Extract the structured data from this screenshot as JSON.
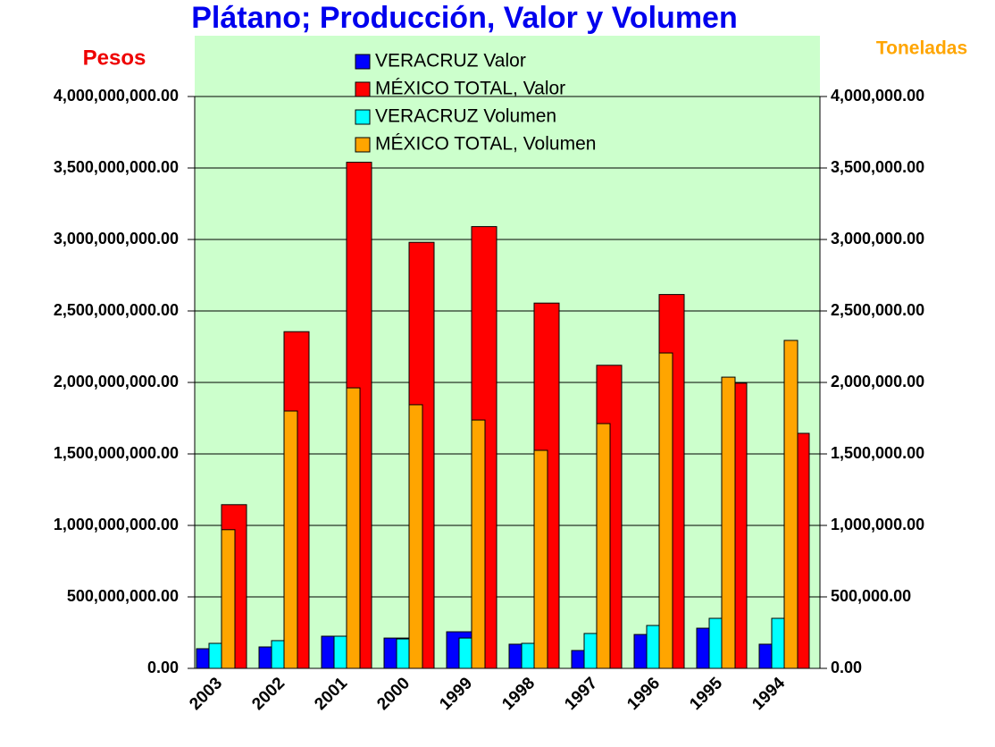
{
  "chart_data": {
    "type": "bar",
    "title": "Plátano; Producción, Valor y Volumen",
    "ylabel": "Pesos",
    "y2label": "Toneladas",
    "categories": [
      "2003",
      "2002",
      "2001",
      "2000",
      "1999",
      "1998",
      "1997",
      "1996",
      "1995",
      "1994"
    ],
    "series": [
      {
        "name": "VERACRUZ Valor",
        "color": "#0000ff",
        "values": [
          137500000,
          150000000,
          225000000,
          212000000,
          256000000,
          169000000,
          125000000,
          237000000,
          281000000,
          169000000
        ]
      },
      {
        "name": "MÉXICO TOTAL,  Valor",
        "color": "#ff0000",
        "values": [
          1145000000,
          2355000000,
          3540000000,
          2980000000,
          3090000000,
          2555000000,
          2120000000,
          2615000000,
          1995000000,
          1644000000
        ]
      },
      {
        "name": "VERACRUZ Volumen",
        "color": "#00ffff",
        "axis": "y2",
        "values": [
          175000,
          194000,
          225000,
          206000,
          212000,
          175000,
          244000,
          300000,
          350000,
          350000
        ]
      },
      {
        "name": "MÉXICO TOTAL, Volumen",
        "color": "#ffa500",
        "axis": "y2",
        "values": [
          970000,
          1800000,
          1962000,
          1844000,
          1737000,
          1525000,
          1712000,
          2206000,
          2037000,
          2294000
        ]
      }
    ],
    "ylim": [
      0,
      4000000000
    ],
    "yticks": [
      {
        "value": 0,
        "label": "0.00"
      },
      {
        "value": 500000000,
        "label": "500,000,000.00"
      },
      {
        "value": 1000000000,
        "label": "1,000,000,000.00"
      },
      {
        "value": 1500000000,
        "label": "1,500,000,000.00"
      },
      {
        "value": 2000000000,
        "label": "2,000,000,000.00"
      },
      {
        "value": 2500000000,
        "label": "2,500,000,000.00"
      },
      {
        "value": 3000000000,
        "label": "3,000,000,000.00"
      },
      {
        "value": 3500000000,
        "label": "3,500,000,000.00"
      },
      {
        "value": 4000000000,
        "label": "4,000,000,000.00"
      }
    ],
    "y2lim": [
      0,
      4000000
    ],
    "y2ticks": [
      {
        "value": 0,
        "label": "0.00"
      },
      {
        "value": 500000,
        "label": "500,000.00"
      },
      {
        "value": 1000000,
        "label": "1,000,000.00"
      },
      {
        "value": 1500000,
        "label": "1,500,000.00"
      },
      {
        "value": 2000000,
        "label": "2,000,000.00"
      },
      {
        "value": 2500000,
        "label": "2,500,000.00"
      },
      {
        "value": 3000000,
        "label": "3,000,000.00"
      },
      {
        "value": 3500000,
        "label": "3,500,000.00"
      },
      {
        "value": 4000000,
        "label": "4,000,000.00"
      }
    ],
    "grid": true,
    "legend": "top"
  }
}
